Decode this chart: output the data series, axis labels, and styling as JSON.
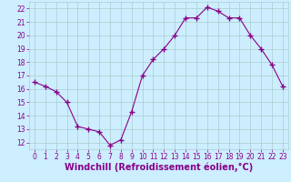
{
  "x": [
    0,
    1,
    2,
    3,
    4,
    5,
    6,
    7,
    8,
    9,
    10,
    11,
    12,
    13,
    14,
    15,
    16,
    17,
    18,
    19,
    20,
    21,
    22,
    23
  ],
  "y": [
    16.5,
    16.2,
    15.8,
    15.0,
    13.2,
    13.0,
    12.8,
    11.8,
    12.2,
    14.3,
    17.0,
    18.2,
    19.0,
    20.0,
    21.3,
    21.3,
    22.1,
    21.8,
    21.3,
    21.3,
    20.0,
    19.0,
    17.8,
    16.2
  ],
  "line_color": "#880088",
  "marker": "+",
  "marker_size": 4,
  "marker_lw": 1.0,
  "bg_color": "#cceeff",
  "grid_color": "#aacccc",
  "xlabel": "Windchill (Refroidissement éolien,°C)",
  "xlabel_color": "#880088",
  "xlabel_fontsize": 7,
  "tick_color": "#880088",
  "ylim": [
    11.5,
    22.5
  ],
  "yticks": [
    12,
    13,
    14,
    15,
    16,
    17,
    18,
    19,
    20,
    21,
    22
  ],
  "xticks": [
    0,
    1,
    2,
    3,
    4,
    5,
    6,
    7,
    8,
    9,
    10,
    11,
    12,
    13,
    14,
    15,
    16,
    17,
    18,
    19,
    20,
    21,
    22,
    23
  ],
  "tick_fontsize": 5.5,
  "line_width": 0.8
}
